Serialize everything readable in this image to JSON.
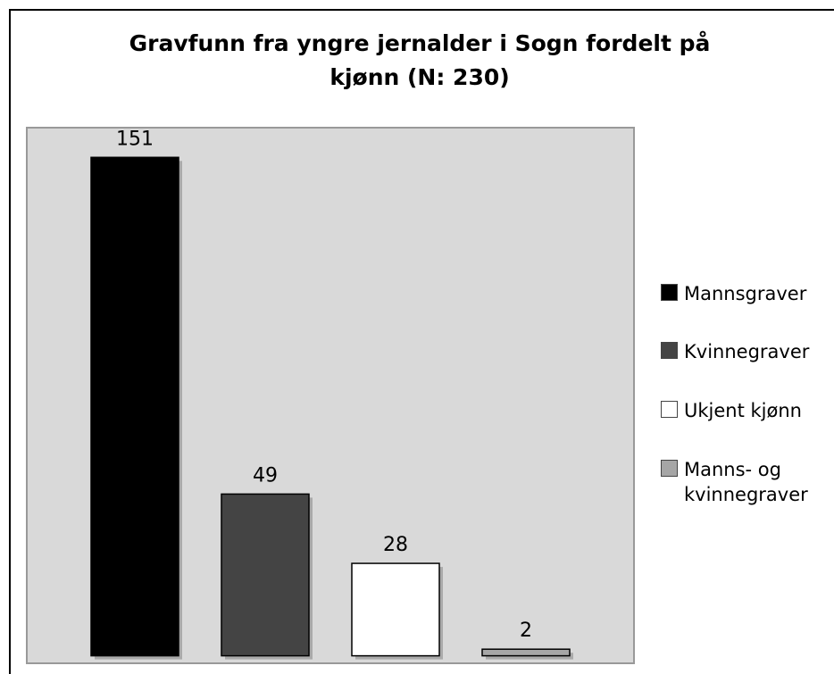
{
  "chart_data": {
    "type": "bar",
    "title": "Gravfunn fra yngre jernalder i Sogn fordelt på kjønn (N: 230)",
    "series": [
      {
        "name": "Mannsgraver",
        "color": "#000000",
        "values": [
          151
        ]
      },
      {
        "name": "Kvinnegraver",
        "color": "#444444",
        "values": [
          49
        ]
      },
      {
        "name": "Ukjent kjønn",
        "color": "#ffffff",
        "values": [
          28
        ]
      },
      {
        "name": "Manns- og kvinnegraver",
        "color": "#a6a6a6",
        "values": [
          2
        ]
      }
    ],
    "ylim": [
      0,
      160
    ],
    "legend": "right"
  }
}
